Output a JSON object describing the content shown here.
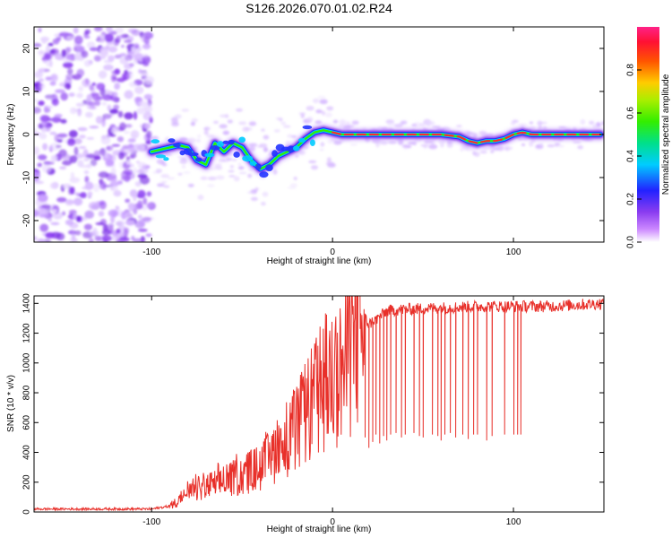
{
  "title": "S126.2026.070.01.02.R24",
  "colors": {
    "snr_line": "#e8302a",
    "spectrum_low": "#8a3cf0",
    "spectrum_ridge": "#e8302a"
  },
  "chart_data": [
    {
      "type": "heatmap",
      "name": "spectrogram",
      "title": "S126.2026.070.01.02.R24",
      "xlabel": "Height of straight line (km)",
      "ylabel": "Frequency (Hz)",
      "xlim": [
        -165,
        150
      ],
      "ylim": [
        -25,
        25
      ],
      "x_ticks": [
        -100,
        0,
        100
      ],
      "x_tick_labels": [
        "-100",
        "0",
        "100"
      ],
      "y_ticks": [
        -20,
        -10,
        0,
        10,
        20
      ],
      "y_tick_labels": [
        "-20",
        "-10",
        "0",
        "10",
        "20"
      ],
      "ridge": {
        "height_km": [
          -100,
          -95,
          -90,
          -85,
          -80,
          -75,
          -70,
          -65,
          -60,
          -55,
          -50,
          -45,
          -40,
          -35,
          -30,
          -25,
          -20,
          -15,
          -10,
          -5,
          0,
          5,
          10,
          20,
          30,
          40,
          50,
          60,
          70,
          75,
          80,
          85,
          90,
          95,
          100,
          105,
          110,
          120,
          130,
          140,
          148
        ],
        "frequency_hz": [
          -4,
          -3.5,
          -3,
          -2.5,
          -3,
          -6,
          -7,
          -2,
          -4,
          -2,
          -3,
          -6,
          -8,
          -7,
          -5,
          -4,
          -3,
          -1,
          0.5,
          1,
          0.5,
          0,
          0,
          0,
          0,
          0,
          0,
          0,
          -0.5,
          -1.5,
          -2,
          -1.5,
          -1.5,
          -1,
          0,
          0.5,
          0,
          0,
          0,
          0,
          0
        ]
      },
      "colorbar": {
        "label": "Normalized spectral amplitude",
        "range": [
          0,
          1
        ],
        "ticks": [
          0.0,
          0.2,
          0.4,
          0.6,
          0.8
        ],
        "tick_labels": [
          "0.0",
          "0.2",
          "0.4",
          "0.6",
          "0.8"
        ]
      }
    },
    {
      "type": "line",
      "name": "snr",
      "xlabel": "Height of straight line (km)",
      "ylabel": "SNR (10 * v/v)",
      "xlim": [
        -165,
        150
      ],
      "ylim": [
        0,
        1450
      ],
      "x_ticks": [
        -100,
        0,
        100
      ],
      "x_tick_labels": [
        "-100",
        "0",
        "100"
      ],
      "y_ticks": [
        0,
        200,
        400,
        600,
        800,
        1000,
        1200,
        1400
      ],
      "y_tick_labels": [
        "0",
        "200",
        "400",
        "600",
        "800",
        "1000",
        "1200",
        "1400"
      ],
      "envelope": {
        "height_km": [
          -165,
          -100,
          -90,
          -85,
          -80,
          -70,
          -60,
          -50,
          -40,
          -35,
          -30,
          -25,
          -20,
          -15,
          -10,
          -5,
          0,
          5,
          10,
          15,
          18,
          20,
          25,
          30,
          40,
          60,
          80,
          100,
          120,
          150
        ],
        "snr": [
          20,
          20,
          40,
          80,
          120,
          170,
          200,
          250,
          300,
          350,
          450,
          500,
          550,
          650,
          750,
          850,
          900,
          950,
          1050,
          1200,
          1300,
          1260,
          1300,
          1350,
          1360,
          1370,
          1380,
          1380,
          1380,
          1400
        ]
      },
      "dropouts": {
        "height_km": [
          18,
          20,
          22,
          24,
          26,
          28,
          30,
          32,
          35,
          38,
          40,
          45,
          48,
          50,
          55,
          58,
          60,
          62,
          65,
          68,
          72,
          75,
          78,
          80,
          85,
          88,
          95,
          100,
          102,
          104
        ],
        "snr": [
          500,
          430,
          470,
          520,
          460,
          510,
          480,
          520,
          530,
          500,
          520,
          530,
          510,
          500,
          520,
          510,
          480,
          520,
          530,
          500,
          520,
          490,
          520,
          520,
          480,
          510,
          520,
          520,
          520,
          520
        ]
      }
    }
  ]
}
